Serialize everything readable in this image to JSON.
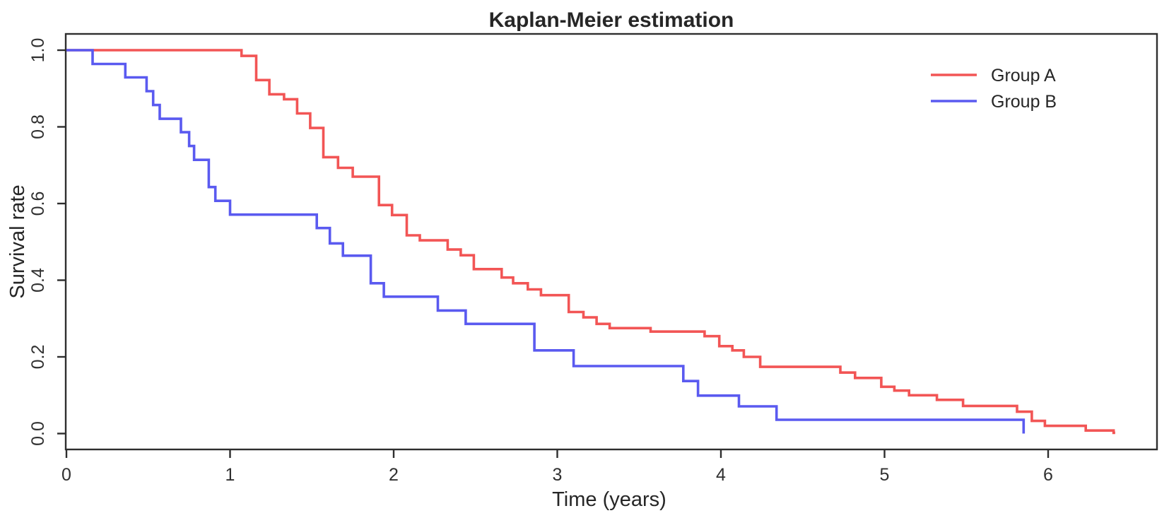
{
  "figure": {
    "background_color": "#ffffff",
    "axis_color": "#2e2e2e",
    "text_color": "#262626"
  },
  "chart_data": {
    "type": "line",
    "subtype": "kaplan-meier-step",
    "title": "Kaplan-Meier estimation",
    "xlabel": "Time (years)",
    "ylabel": "Survival rate",
    "x_ticks": [
      "0",
      "1",
      "2",
      "3",
      "4",
      "5",
      "6"
    ],
    "x_tick_values": [
      0,
      1,
      2,
      3,
      4,
      5,
      6
    ],
    "y_ticks": [
      "0.0",
      "0.2",
      "0.4",
      "0.6",
      "0.8",
      "1.0"
    ],
    "y_tick_values": [
      0.0,
      0.2,
      0.4,
      0.6,
      0.8,
      1.0
    ],
    "xlim": [
      0,
      6.67
    ],
    "ylim": [
      0,
      1
    ],
    "grid": false,
    "legend_position": "top-right",
    "series": [
      {
        "name": "Group A",
        "color": "#f25555",
        "start": [
          0,
          1.0
        ],
        "end_t": 6.41,
        "steps": [
          [
            1.07,
            0.985
          ],
          [
            1.16,
            0.922
          ],
          [
            1.24,
            0.885
          ],
          [
            1.33,
            0.872
          ],
          [
            1.41,
            0.835
          ],
          [
            1.49,
            0.797
          ],
          [
            1.57,
            0.721
          ],
          [
            1.66,
            0.693
          ],
          [
            1.75,
            0.67
          ],
          [
            1.91,
            0.596
          ],
          [
            1.99,
            0.57
          ],
          [
            2.08,
            0.517
          ],
          [
            2.16,
            0.504
          ],
          [
            2.33,
            0.48
          ],
          [
            2.41,
            0.465
          ],
          [
            2.49,
            0.429
          ],
          [
            2.66,
            0.407
          ],
          [
            2.73,
            0.392
          ],
          [
            2.82,
            0.376
          ],
          [
            2.9,
            0.361
          ],
          [
            3.07,
            0.317
          ],
          [
            3.16,
            0.303
          ],
          [
            3.24,
            0.286
          ],
          [
            3.32,
            0.275
          ],
          [
            3.57,
            0.266
          ],
          [
            3.9,
            0.254
          ],
          [
            3.99,
            0.228
          ],
          [
            4.07,
            0.217
          ],
          [
            4.14,
            0.2
          ],
          [
            4.24,
            0.174
          ],
          [
            4.73,
            0.159
          ],
          [
            4.82,
            0.145
          ],
          [
            4.98,
            0.122
          ],
          [
            5.06,
            0.112
          ],
          [
            5.15,
            0.1
          ],
          [
            5.32,
            0.088
          ],
          [
            5.48,
            0.072
          ],
          [
            5.81,
            0.057
          ],
          [
            5.9,
            0.033
          ],
          [
            5.98,
            0.02
          ],
          [
            6.23,
            0.008
          ],
          [
            6.4,
            0.002
          ]
        ]
      },
      {
        "name": "Group B",
        "color": "#5a5af0",
        "start": [
          0,
          1.0
        ],
        "end_t": 5.85,
        "steps": [
          [
            0.16,
            0.964
          ],
          [
            0.36,
            0.929
          ],
          [
            0.49,
            0.893
          ],
          [
            0.53,
            0.857
          ],
          [
            0.57,
            0.821
          ],
          [
            0.7,
            0.786
          ],
          [
            0.75,
            0.75
          ],
          [
            0.78,
            0.714
          ],
          [
            0.87,
            0.643
          ],
          [
            0.91,
            0.607
          ],
          [
            1.0,
            0.571
          ],
          [
            1.53,
            0.536
          ],
          [
            1.61,
            0.496
          ],
          [
            1.69,
            0.464
          ],
          [
            1.86,
            0.392
          ],
          [
            1.94,
            0.357
          ],
          [
            2.27,
            0.321
          ],
          [
            2.44,
            0.286
          ],
          [
            2.86,
            0.217
          ],
          [
            3.1,
            0.176
          ],
          [
            3.77,
            0.137
          ],
          [
            3.86,
            0.099
          ],
          [
            4.11,
            0.071
          ],
          [
            4.34,
            0.036
          ],
          [
            5.85,
            0.0
          ]
        ]
      }
    ]
  }
}
